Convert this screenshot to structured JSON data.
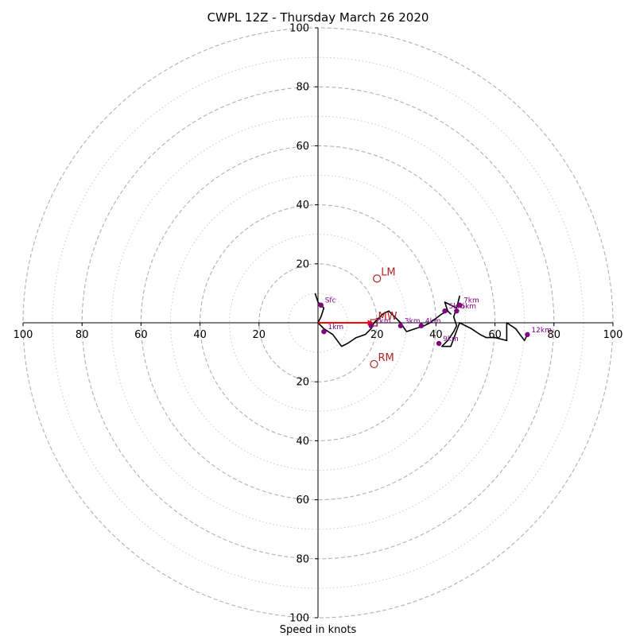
{
  "chart_data": {
    "type": "scatter",
    "title": "CWPL 12Z - Thursday March 26 2020",
    "xlabel": "Speed in knots",
    "ylabel": "",
    "xlim": [
      -100,
      100
    ],
    "ylim": [
      -100,
      100
    ],
    "rings_major": [
      20,
      40,
      60,
      80,
      100
    ],
    "rings_minor": [
      10,
      30,
      50,
      70,
      90
    ],
    "x_tick_labels": [
      "100",
      "80",
      "60",
      "40",
      "20",
      "20",
      "40",
      "60",
      "80",
      "100"
    ],
    "x_tick_values": [
      -100,
      -80,
      -60,
      -40,
      -20,
      20,
      40,
      60,
      80,
      100
    ],
    "y_tick_labels": [
      "100",
      "80",
      "60",
      "40",
      "20",
      "20",
      "40",
      "60",
      "80",
      "100"
    ],
    "y_tick_values": [
      100,
      80,
      60,
      40,
      20,
      -20,
      -40,
      -60,
      -80,
      -100
    ],
    "hodograph_line": [
      [
        -1,
        10
      ],
      [
        0,
        7
      ],
      [
        2,
        5
      ],
      [
        1,
        2
      ],
      [
        0,
        0
      ],
      [
        2,
        -2
      ],
      [
        5,
        -4
      ],
      [
        8,
        -8
      ],
      [
        10,
        -7
      ],
      [
        13,
        -5
      ],
      [
        16,
        -4
      ],
      [
        18,
        -2
      ],
      [
        19,
        0
      ],
      [
        20,
        1
      ],
      [
        22,
        3
      ],
      [
        24,
        4
      ],
      [
        25,
        3
      ],
      [
        27,
        1
      ],
      [
        28,
        0
      ],
      [
        30,
        -3
      ],
      [
        33,
        -2
      ],
      [
        36,
        -1
      ],
      [
        38,
        0
      ],
      [
        42,
        3
      ],
      [
        44,
        4
      ],
      [
        45,
        3
      ],
      [
        44,
        4
      ],
      [
        43,
        7
      ],
      [
        45,
        6
      ],
      [
        47,
        5
      ],
      [
        48,
        9
      ],
      [
        47,
        5
      ],
      [
        46,
        2
      ],
      [
        47,
        -1
      ],
      [
        46,
        -3
      ],
      [
        44,
        -6
      ],
      [
        42,
        -8
      ],
      [
        45,
        -8
      ],
      [
        48,
        0
      ],
      [
        52,
        -2
      ],
      [
        55,
        -4
      ],
      [
        57,
        -5
      ],
      [
        60,
        -5
      ],
      [
        64,
        -6
      ],
      [
        64,
        0
      ],
      [
        67,
        -2
      ],
      [
        70,
        -6
      ],
      [
        71,
        -4
      ]
    ],
    "height_points": [
      {
        "label": "Sfc",
        "x": 1,
        "y": 6
      },
      {
        "label": "1km",
        "x": 2,
        "y": -3
      },
      {
        "label": "2km",
        "x": 18,
        "y": -1
      },
      {
        "label": "3km",
        "x": 28,
        "y": -1
      },
      {
        "label": "4km",
        "x": 35,
        "y": -1
      },
      {
        "label": "5km",
        "x": 43,
        "y": 4
      },
      {
        "label": "6km",
        "x": 47,
        "y": 4
      },
      {
        "label": "7km",
        "x": 48,
        "y": 6
      },
      {
        "label": "9km",
        "x": 41,
        "y": -7
      },
      {
        "label": "12km",
        "x": 71,
        "y": -4
      }
    ],
    "storm_motion": [
      {
        "label": "LM",
        "x": 20,
        "y": 15
      },
      {
        "label": "MW",
        "x": 19,
        "y": 0
      },
      {
        "label": "RM",
        "x": 19,
        "y": -14
      }
    ],
    "shear_vector": {
      "from": [
        0,
        0
      ],
      "to": [
        19,
        0
      ]
    },
    "colors": {
      "grid_major": "#b0b0b0",
      "grid_minor": "#c8c8c8",
      "hodograph": "#000000",
      "height_points": "#800080",
      "storm_motion": "#b22222",
      "shear_vector": "#ff0000"
    }
  }
}
